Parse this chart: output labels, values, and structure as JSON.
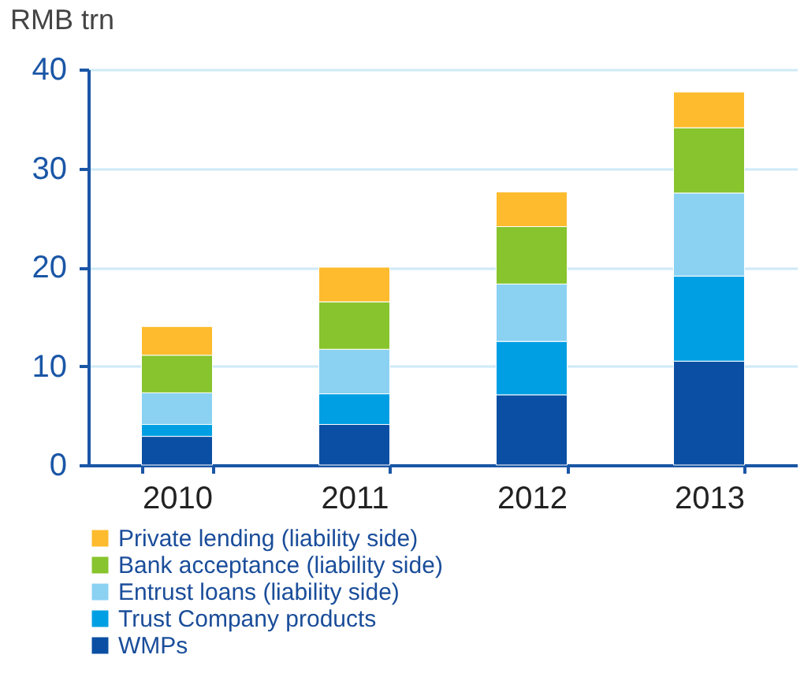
{
  "chart_data": {
    "type": "bar",
    "stacked": true,
    "ylabel": "RMB trn",
    "categories": [
      "2010",
      "2011",
      "2012",
      "2013"
    ],
    "series": [
      {
        "name": "WMPs",
        "color": "#0a4fa3",
        "values": [
          2.9,
          4.1,
          7.1,
          10.5
        ]
      },
      {
        "name": "Trust Company products",
        "color": "#009fe3",
        "values": [
          1.2,
          3.1,
          5.4,
          8.6
        ]
      },
      {
        "name": "Entrust loans (liability side)",
        "color": "#8ad1f2",
        "values": [
          3.2,
          4.5,
          5.8,
          8.4
        ]
      },
      {
        "name": "Bank acceptance (liability side)",
        "color": "#87c42d",
        "values": [
          3.8,
          4.8,
          5.8,
          6.6
        ]
      },
      {
        "name": "Private lending (liability side)",
        "color": "#fdbb2d",
        "values": [
          2.9,
          3.5,
          3.5,
          3.6
        ]
      }
    ],
    "ylim": [
      0,
      40
    ],
    "yticks": [
      0,
      10,
      20,
      30,
      40
    ],
    "grid": "y",
    "legend": "bottom"
  }
}
